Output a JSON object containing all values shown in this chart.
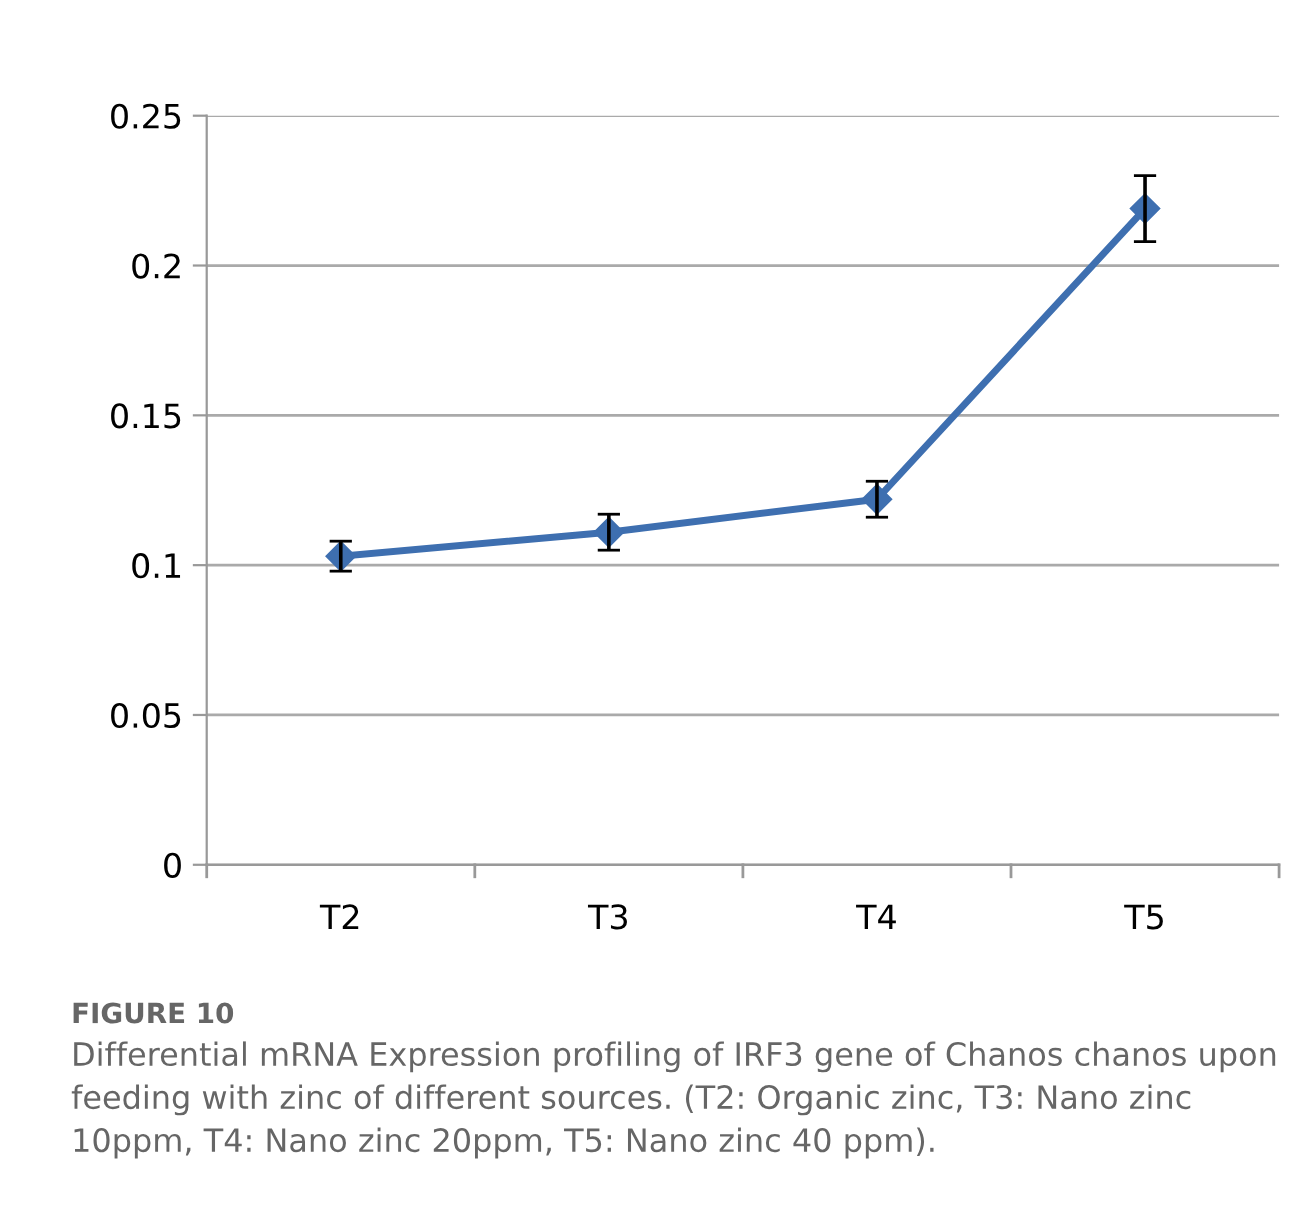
{
  "chart_data": {
    "type": "line",
    "title": "FIGURE 10",
    "annotations": [
      "Differential mRNA Expression profiling of IRF3 gene of Chanos chanos upon feeding with zinc of different sources. (T2: Organic zinc, T3: Nano zinc 10ppm, T4: Nano zinc 20ppm, T5: Nano zinc 40 ppm)."
    ],
    "categories": [
      "T2",
      "T3",
      "T4",
      "T5"
    ],
    "series": [
      {
        "color": "#3e6fb0",
        "values": [
          0.103,
          0.111,
          0.122,
          0.219
        ],
        "errors": [
          0.005,
          0.006,
          0.006,
          0.011
        ]
      }
    ],
    "ylim": [
      0,
      0.25
    ],
    "yticks": [
      0,
      0.05,
      0.1,
      0.15,
      0.2,
      0.25
    ],
    "grid": "y",
    "marker": "diamond",
    "line_style": "solid"
  }
}
